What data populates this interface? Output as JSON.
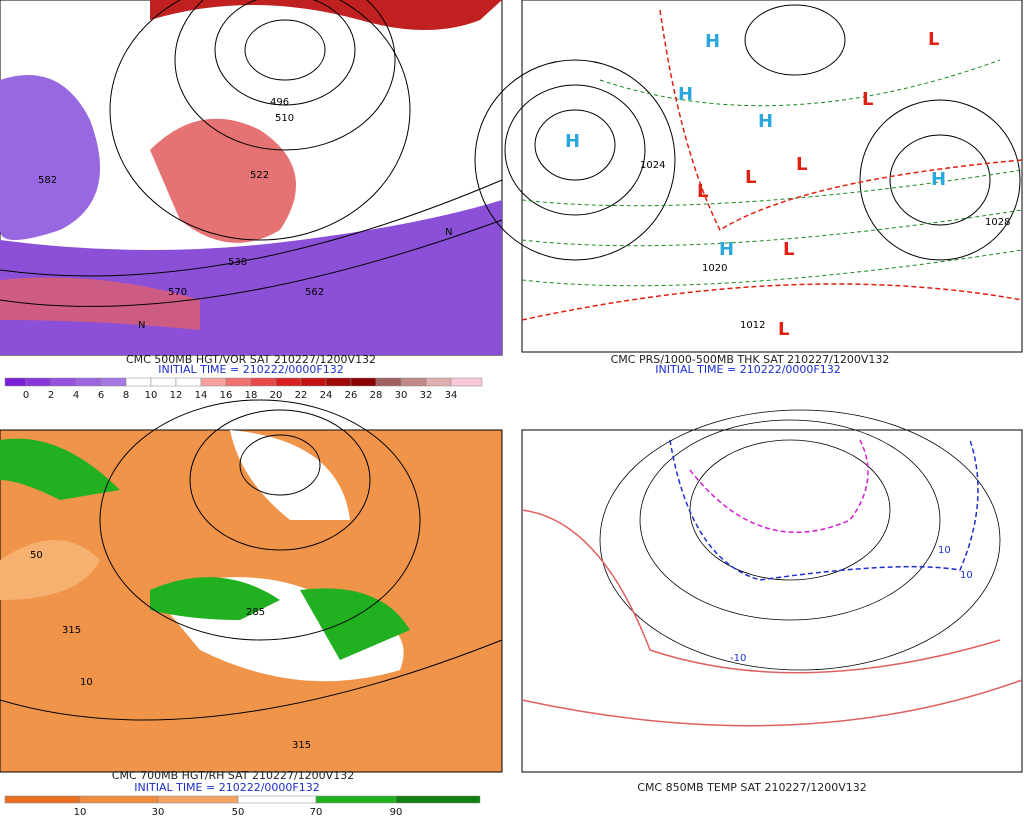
{
  "panels": [
    {
      "caption": "CMC 500MB HGT/VOR SAT 210227/1200V132",
      "initial_time": "INITIAL TIME = 210222/0000F132",
      "colorbar": {
        "labels": [
          "0",
          "2",
          "4",
          "6",
          "8",
          "10",
          "12",
          "14",
          "16",
          "18",
          "20",
          "22",
          "24",
          "26",
          "28",
          "30",
          "32",
          "34"
        ],
        "colors": [
          "#7b1fd8",
          "#8a38dc",
          "#9450de",
          "#9c64e0",
          "#a678e4",
          "#ffffff",
          "#ffffff",
          "#ffffff",
          "#f8a0a0",
          "#f07070",
          "#e84848",
          "#d82020",
          "#c01010",
          "#a00808",
          "#880000",
          "#a06060",
          "#c08888",
          "#e0b0b0",
          "#f8c8d8"
        ]
      },
      "map_labels": [
        "582",
        "570",
        "562",
        "538",
        "522",
        "496",
        "510",
        "N",
        "N"
      ]
    },
    {
      "caption": "CMC PRS/1000-500MB THK SAT 210227/1200V132",
      "initial_time": "INITIAL TIME = 210222/0000F132",
      "highs": [
        "H",
        "H",
        "H",
        "H",
        "H",
        "H"
      ],
      "lows": [
        "L",
        "L",
        "L",
        "L",
        "L",
        "L",
        "L"
      ],
      "map_labels": [
        "1028",
        "1012",
        "1020",
        "1024"
      ]
    },
    {
      "caption": "CMC 700MB HGT/RH SAT 210227/1200V132",
      "initial_time": "INITIAL TIME = 210222/0000F132",
      "colorbar": {
        "labels": [
          "10",
          "30",
          "50",
          "70",
          "90"
        ],
        "colors": [
          "#e87020",
          "#f08c40",
          "#f4a460",
          "#ffffff",
          "#20b020",
          "#108010"
        ]
      },
      "map_labels": [
        "315",
        "315",
        "285",
        "10",
        "50"
      ]
    },
    {
      "caption": "CMC 850MB TEMP SAT 210227/1200V132",
      "map_labels": [
        "10",
        "-10",
        "10"
      ]
    }
  ]
}
